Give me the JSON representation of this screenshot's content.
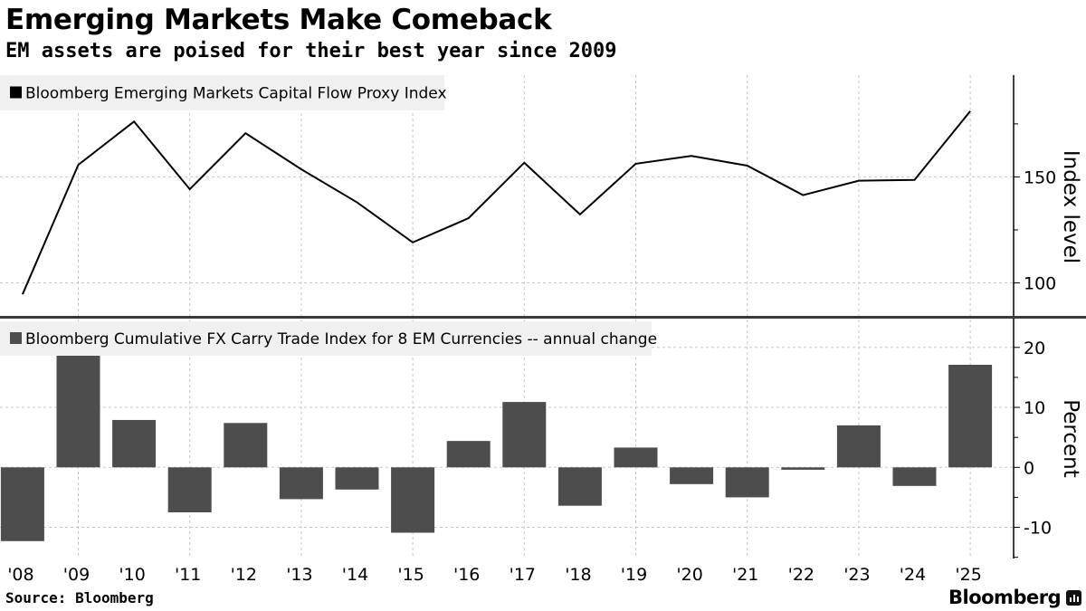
{
  "title": "Emerging Markets Make Comeback",
  "subtitle": "EM assets are poised for their best year since 2009",
  "source": "Source: Bloomberg",
  "logo_text": "Bloomberg",
  "colors": {
    "line": "#000000",
    "bar": "#4d4d4d",
    "legend_bg": "#f0f0f0",
    "grid": "#c8c8c8"
  },
  "chart_data": [
    {
      "type": "line",
      "legend": "Bloomberg Emerging Markets Capital Flow Proxy Index",
      "ylabel": "Index level",
      "ylim": [
        84,
        198
      ],
      "yticks": [
        100,
        150
      ],
      "grid": true,
      "legend_position": "top-left",
      "categories": [
        "'08",
        "'09",
        "'10",
        "'11",
        "'12",
        "'13",
        "'14",
        "'15",
        "'16",
        "'17",
        "'18",
        "'19",
        "'20",
        "'21",
        "'22",
        "'23",
        "'24",
        "'25"
      ],
      "values": [
        94.6,
        155.7,
        176.1,
        144.2,
        170.6,
        153.6,
        138.0,
        119.1,
        130.5,
        156.7,
        132.3,
        156.2,
        159.9,
        155.3,
        141.4,
        148.2,
        148.6,
        181.0
      ]
    },
    {
      "type": "bar",
      "legend": "Bloomberg Cumulative FX Carry Trade Index for 8 EM Currencies -- annual change",
      "ylabel": "Percent",
      "ylim": [
        -15.2,
        24.8
      ],
      "yticks": [
        -10,
        0,
        10,
        20
      ],
      "grid": true,
      "legend_position": "top-left",
      "categories": [
        "'08",
        "'09",
        "'10",
        "'11",
        "'12",
        "'13",
        "'14",
        "'15",
        "'16",
        "'17",
        "'18",
        "'19",
        "'20",
        "'21",
        "'22",
        "'23",
        "'24",
        "'25"
      ],
      "values": [
        -12.3,
        19.8,
        7.9,
        -7.5,
        7.4,
        -5.3,
        -3.7,
        -10.9,
        4.4,
        10.9,
        -6.4,
        3.3,
        -2.8,
        -5.0,
        -0.4,
        7.0,
        -3.1,
        17.1
      ]
    }
  ]
}
